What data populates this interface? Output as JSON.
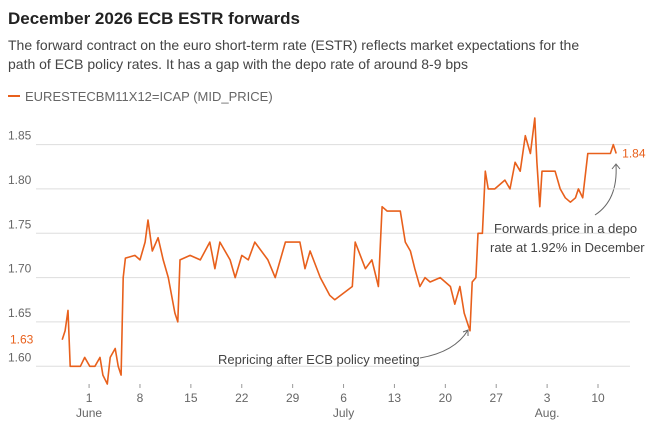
{
  "chart_data": {
    "type": "line",
    "title": "December 2026 ECB ESTR forwards",
    "subtitle": [
      "The forward contract on the euro short-term rate (ESTR) reflects market expectations for the",
      "path of ECB policy rates. It has a gap with the depo rate of around 8-9 bps"
    ],
    "x": [
      -3.7,
      -3.3,
      -2.9,
      -2.6,
      -1.2,
      -0.6,
      0.1,
      0.8,
      1.5,
      1.9,
      2.5,
      2.9,
      3.6,
      4.0,
      4.4,
      4.7,
      5.0,
      6.3,
      7.0,
      7.7,
      8.1,
      8.7,
      9.5,
      10.2,
      10.9,
      11.8,
      12.2,
      12.5,
      13.9,
      15.3,
      16.6,
      17.3,
      18.0,
      19.4,
      20.1,
      21.0,
      21.9,
      22.8,
      24.6,
      25.6,
      27.0,
      29.0,
      29.7,
      30.4,
      31.8,
      33.1,
      33.8,
      36.2,
      36.6,
      38.0,
      38.9,
      39.8,
      40.3,
      41.0,
      42.8,
      43.5,
      44.2,
      44.8,
      45.5,
      46.2,
      46.9,
      48.3,
      49.7,
      50.3,
      51.0,
      51.6,
      52.4,
      52.7,
      53.2,
      53.5,
      54.1,
      54.5,
      54.9,
      55.8,
      57.2,
      57.9,
      58.6,
      59.3,
      60.0,
      60.7,
      61.3,
      61.6,
      62.0,
      62.3,
      64.1,
      64.8,
      65.5,
      66.2,
      66.9,
      67.3,
      67.9,
      68.6,
      70.3,
      71.7,
      72.1,
      72.5
    ],
    "series": [
      {
        "name": "EURESTECBM11X12=ICAP (MID_PRICE)",
        "color": "#e8601c",
        "values": [
          1.63,
          1.64,
          1.663,
          1.6,
          1.6,
          1.61,
          1.6,
          1.6,
          1.61,
          1.59,
          1.58,
          1.61,
          1.62,
          1.6,
          1.59,
          1.7,
          1.722,
          1.725,
          1.72,
          1.74,
          1.765,
          1.73,
          1.745,
          1.72,
          1.7,
          1.66,
          1.65,
          1.72,
          1.725,
          1.72,
          1.74,
          1.71,
          1.74,
          1.72,
          1.7,
          1.725,
          1.72,
          1.74,
          1.72,
          1.7,
          1.74,
          1.74,
          1.71,
          1.73,
          1.7,
          1.68,
          1.675,
          1.69,
          1.74,
          1.71,
          1.72,
          1.69,
          1.78,
          1.775,
          1.775,
          1.74,
          1.73,
          1.71,
          1.69,
          1.7,
          1.695,
          1.7,
          1.69,
          1.67,
          1.69,
          1.66,
          1.64,
          1.695,
          1.7,
          1.75,
          1.75,
          1.82,
          1.8,
          1.8,
          1.81,
          1.8,
          1.83,
          1.82,
          1.86,
          1.84,
          1.88,
          1.83,
          1.78,
          1.82,
          1.82,
          1.8,
          1.79,
          1.785,
          1.79,
          1.8,
          1.79,
          1.84,
          1.84,
          1.84,
          1.85,
          1.84
        ],
        "value_labels": [
          "1.63",
          null,
          null,
          null,
          null,
          null,
          null,
          null,
          null,
          null,
          null,
          null,
          null,
          null,
          null,
          null,
          null,
          null,
          null,
          null,
          null,
          null,
          null,
          null,
          null,
          null,
          null,
          null,
          null,
          null,
          null,
          null,
          null,
          null,
          null,
          null,
          null,
          null,
          null,
          null,
          null,
          null,
          null,
          null,
          null,
          null,
          null,
          null,
          null,
          null,
          null,
          null,
          null,
          null,
          null,
          null,
          null,
          null,
          null,
          null,
          null,
          null,
          null,
          null,
          null,
          null,
          null,
          null,
          null,
          null,
          null,
          null,
          null,
          null,
          null,
          null,
          null,
          null,
          null,
          null,
          null,
          null,
          null,
          null,
          null,
          null,
          null,
          null,
          null,
          null,
          null,
          null,
          null,
          null,
          null,
          "1.84"
        ]
      }
    ],
    "xlim": [
      -7.3,
      74.4
    ],
    "xticks": [
      {
        "value": 0,
        "label": "1"
      },
      {
        "value": 7,
        "label": "8"
      },
      {
        "value": 14,
        "label": "15"
      },
      {
        "value": 21,
        "label": "22"
      },
      {
        "value": 28,
        "label": "29"
      },
      {
        "value": 35,
        "label": "6"
      },
      {
        "value": 42,
        "label": "13"
      },
      {
        "value": 49,
        "label": "20"
      },
      {
        "value": 56,
        "label": "27"
      },
      {
        "value": 63,
        "label": "3"
      },
      {
        "value": 70,
        "label": "10"
      }
    ],
    "month_labels": [
      {
        "value": 0,
        "label": "June"
      },
      {
        "value": 35,
        "label": "July"
      },
      {
        "value": 63,
        "label": "Aug."
      }
    ],
    "ylim": [
      1.58,
      1.88
    ],
    "yticks": [
      {
        "value": 1.6,
        "label": "1.60"
      },
      {
        "value": 1.65,
        "label": "1.65"
      },
      {
        "value": 1.7,
        "label": "1.70"
      },
      {
        "value": 1.75,
        "label": "1.75"
      },
      {
        "value": 1.8,
        "label": "1.80"
      },
      {
        "value": 1.85,
        "label": "1.85"
      }
    ],
    "grid": true,
    "annotations": [
      {
        "text": "Repricing after ECB policy meeting"
      },
      {
        "text": [
          "Forwards price in a depo",
          "rate at 1.92% in December"
        ]
      }
    ]
  }
}
